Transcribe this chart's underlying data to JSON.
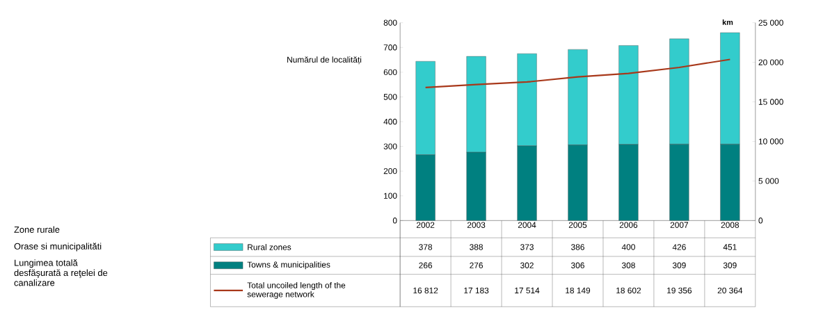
{
  "chart_data": {
    "type": "bar",
    "stacked": true,
    "ylabel": "Numărul de localități",
    "y2label": "km",
    "categories": [
      "2002",
      "2003",
      "2004",
      "2005",
      "2006",
      "2007",
      "2008"
    ],
    "series": [
      {
        "name": "Towns & municipalities",
        "type": "bar",
        "color": "#008080",
        "values": [
          266,
          276,
          302,
          306,
          308,
          309,
          309
        ],
        "value_labels": [
          "266",
          "276",
          "302",
          "306",
          "308",
          "309",
          "309"
        ]
      },
      {
        "name": "Rural zones",
        "type": "bar",
        "color": "#33cccc",
        "values": [
          378,
          388,
          373,
          386,
          400,
          426,
          451
        ],
        "value_labels": [
          "378",
          "388",
          "373",
          "386",
          "400",
          "426",
          "451"
        ]
      },
      {
        "name": "Total uncoiled length of the sewerage network",
        "type": "line",
        "axis": "y2",
        "color": "#a8381a",
        "values": [
          16812,
          17183,
          17514,
          18149,
          18602,
          19356,
          20364
        ]
      }
    ],
    "ylim": [
      0,
      800
    ],
    "yticks": [
      0,
      100,
      200,
      300,
      400,
      500,
      600,
      700,
      800
    ],
    "y2lim": [
      0,
      25000
    ],
    "y2ticks": [
      0,
      {
        "value": 5000,
        "label": "5 000"
      },
      {
        "value": 10000,
        "label": "10 000"
      },
      {
        "value": 15000,
        "label": "15 000"
      },
      {
        "value": 20000,
        "label": "20 000"
      },
      {
        "value": 25000,
        "label": "25 000"
      }
    ],
    "legend": "bottom left",
    "annotations": [
      "Zone rurale",
      "Orase si municipalităti",
      "Lungimea totală desfăşurată a reţelei de canalizare",
      "16 812",
      "17 183",
      "17 514",
      "18 149",
      "18 602",
      "19 356",
      "20 364"
    ]
  }
}
